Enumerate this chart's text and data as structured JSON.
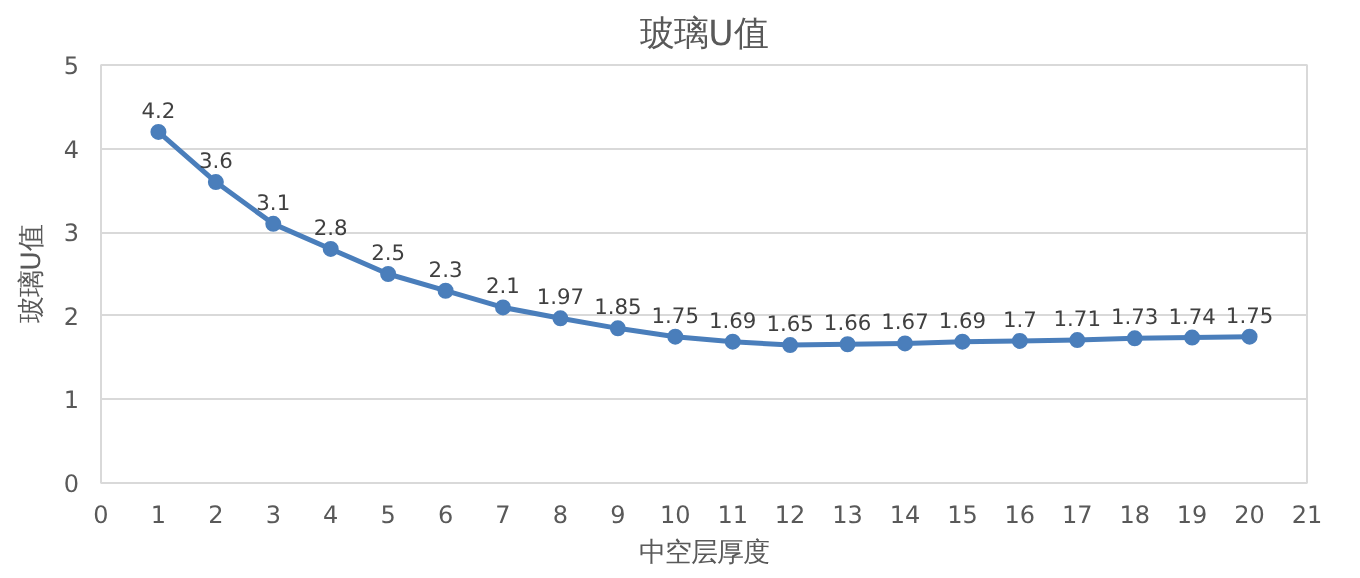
{
  "chart_data": {
    "type": "line",
    "title": "玻璃U值",
    "xlabel": "中空层厚度",
    "ylabel": "玻璃U值",
    "x": [
      1,
      2,
      3,
      4,
      5,
      6,
      7,
      8,
      9,
      10,
      11,
      12,
      13,
      14,
      15,
      16,
      17,
      18,
      19,
      20
    ],
    "series": [
      {
        "color": "#4a7ebb",
        "values": [
          4.2,
          3.6,
          3.1,
          2.8,
          2.5,
          2.3,
          2.1,
          1.97,
          1.85,
          1.75,
          1.69,
          1.65,
          1.66,
          1.67,
          1.69,
          1.7,
          1.71,
          1.73,
          1.74,
          1.75
        ]
      }
    ],
    "xlim": [
      0,
      21
    ],
    "xticks": [
      0,
      1,
      2,
      3,
      4,
      5,
      6,
      7,
      8,
      9,
      10,
      11,
      12,
      13,
      14,
      15,
      16,
      17,
      18,
      19,
      20,
      21
    ],
    "ylim": [
      0,
      5
    ],
    "yticks": [
      0,
      1,
      2,
      3,
      4,
      5
    ],
    "grid": "y",
    "marker": "circle",
    "line_style": "solid",
    "data_labels": true
  }
}
